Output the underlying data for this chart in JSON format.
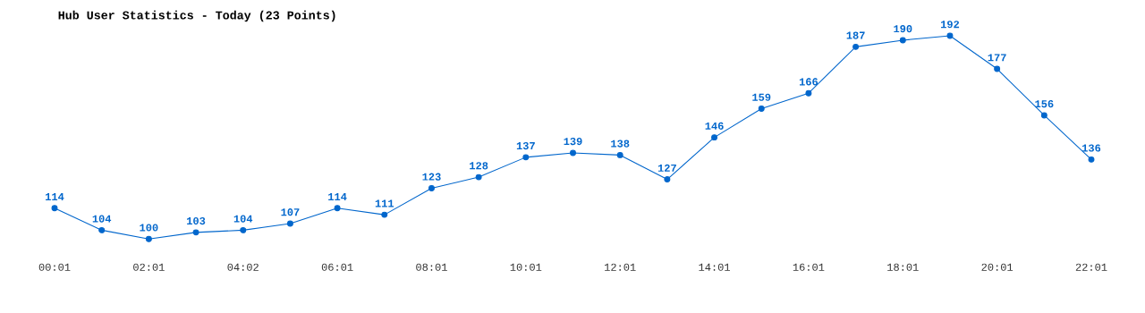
{
  "chart_data": {
    "type": "line",
    "title": "Hub User Statistics - Today (23 Points)",
    "categories": [
      "00:01",
      null,
      "02:01",
      null,
      "04:02",
      null,
      "06:01",
      null,
      "08:01",
      null,
      "10:01",
      null,
      "12:01",
      null,
      "14:01",
      null,
      "16:01",
      null,
      "18:01",
      null,
      "20:01",
      null,
      "22:01"
    ],
    "values": [
      114,
      104,
      100,
      103,
      104,
      107,
      114,
      111,
      123,
      128,
      137,
      139,
      138,
      127,
      146,
      159,
      166,
      187,
      190,
      192,
      177,
      156,
      136
    ],
    "color": "#0066cc",
    "data_labels": true,
    "marker": "circle",
    "line_style": "solid"
  }
}
